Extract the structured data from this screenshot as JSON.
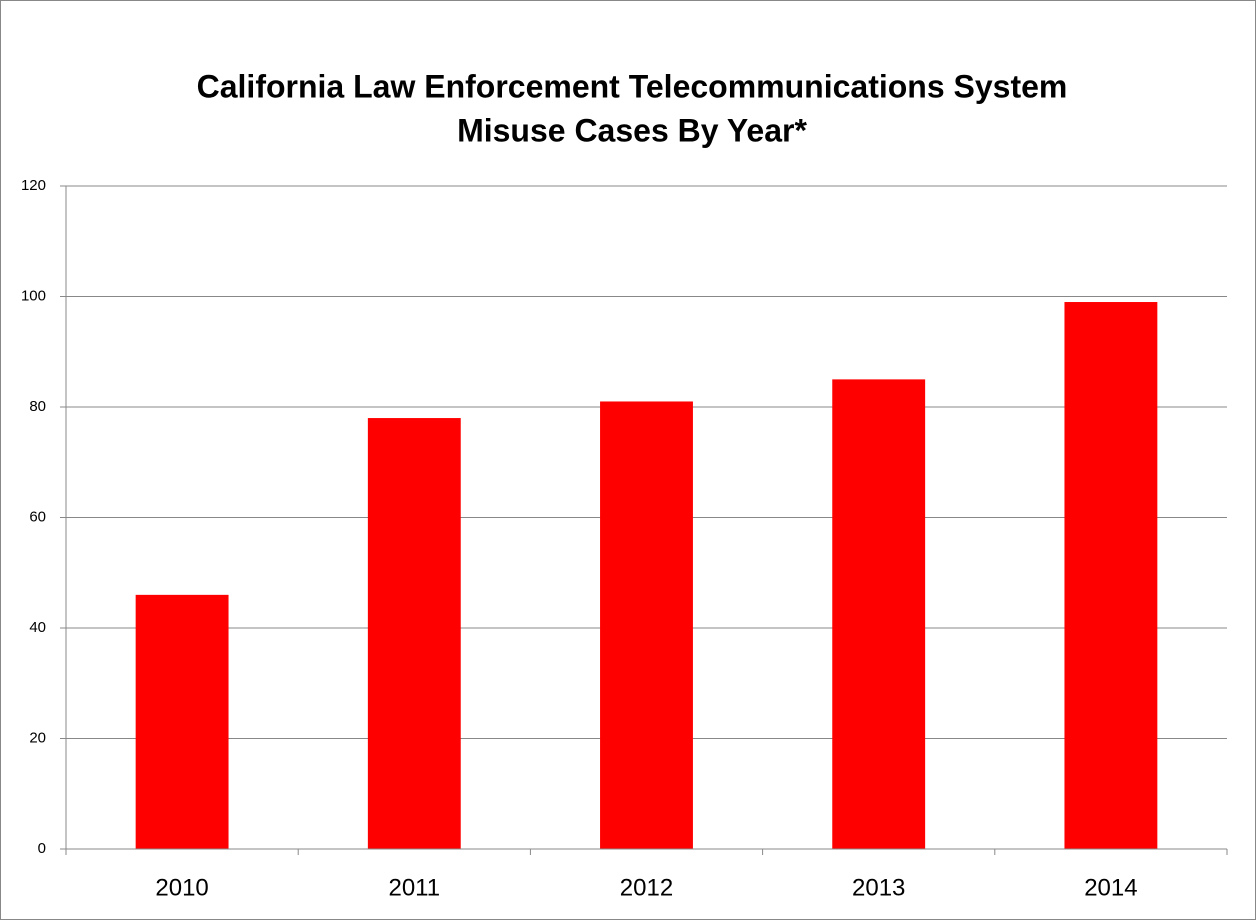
{
  "chart_data": {
    "type": "bar",
    "title": [
      "California Law Enforcement Telecommunications System",
      "Misuse Cases By Year*"
    ],
    "categories": [
      "2010",
      "2011",
      "2012",
      "2013",
      "2014"
    ],
    "values": [
      46,
      78,
      81,
      85,
      99
    ],
    "color": "#ff0000",
    "ylim": [
      0,
      120
    ],
    "yticks": [
      0,
      20,
      40,
      60,
      80,
      100,
      120
    ],
    "grid": true
  }
}
